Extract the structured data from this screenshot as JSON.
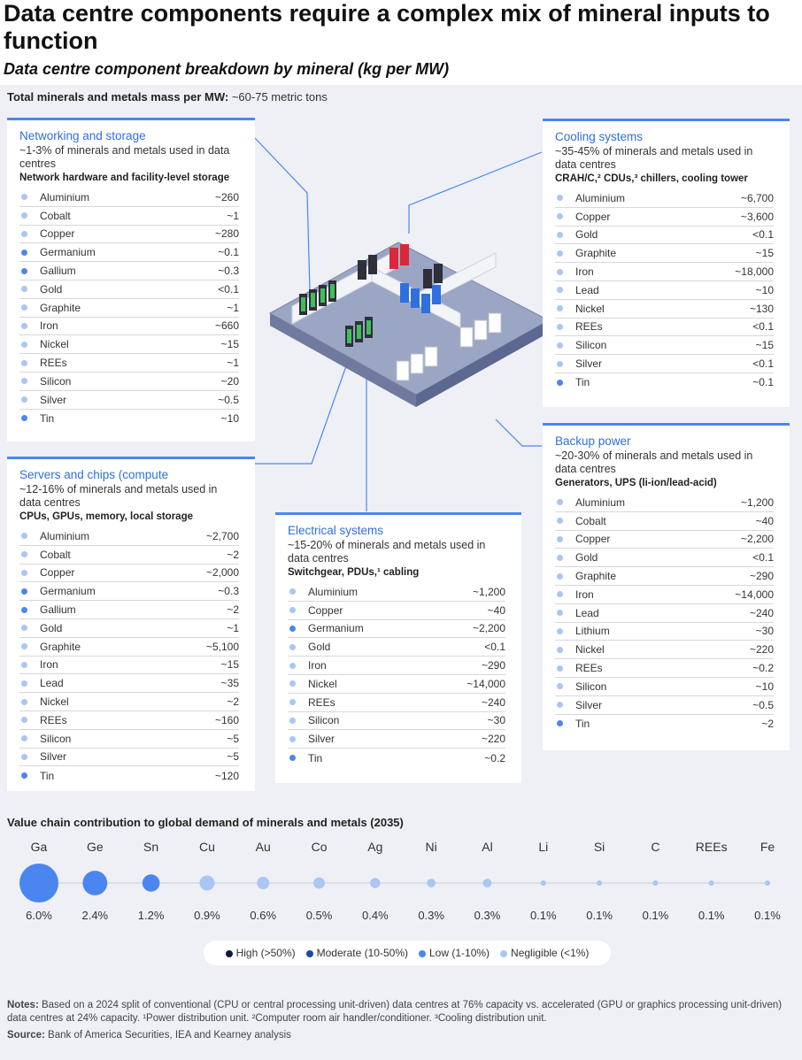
{
  "title": "Data centre components require a complex mix of mineral inputs to function",
  "subtitle": "Data centre component breakdown by mineral (kg per MW)",
  "total": {
    "label": "Total minerals and metals mass per MW:",
    "value": "~60-75 metric tons"
  },
  "colors": {
    "high": "#0c1a3c",
    "moderate": "#1f48a8",
    "low": "#4b86f0",
    "negligible": "#a9c6f5"
  },
  "components": [
    {
      "key": "networking",
      "title": "Networking and storage",
      "share": "~1-3% of minerals and metals used in data centres",
      "items": "Network hardware and facility-level storage",
      "minerals": [
        {
          "name": "Aluminium",
          "value": "~260",
          "level": "negligible"
        },
        {
          "name": "Cobalt",
          "value": "~1",
          "level": "negligible"
        },
        {
          "name": "Copper",
          "value": "~280",
          "level": "negligible"
        },
        {
          "name": "Germanium",
          "value": "~0.1",
          "level": "low"
        },
        {
          "name": "Gallium",
          "value": "~0.3",
          "level": "low"
        },
        {
          "name": "Gold",
          "value": "<0.1",
          "level": "negligible"
        },
        {
          "name": "Graphite",
          "value": "~1",
          "level": "negligible"
        },
        {
          "name": "Iron",
          "value": "~660",
          "level": "negligible"
        },
        {
          "name": "Nickel",
          "value": "~15",
          "level": "negligible"
        },
        {
          "name": "REEs",
          "value": "~1",
          "level": "negligible"
        },
        {
          "name": "Silicon",
          "value": "~20",
          "level": "negligible"
        },
        {
          "name": "Silver",
          "value": "~0.5",
          "level": "negligible"
        },
        {
          "name": "Tin",
          "value": "~10",
          "level": "low"
        }
      ]
    },
    {
      "key": "servers",
      "title": "Servers and chips (compute",
      "share": "~12-16% of minerals and metals used in data centres",
      "items": "CPUs, GPUs, memory, local storage",
      "minerals": [
        {
          "name": "Aluminium",
          "value": "~2,700",
          "level": "negligible"
        },
        {
          "name": "Cobalt",
          "value": "~2",
          "level": "negligible"
        },
        {
          "name": "Copper",
          "value": "~2,000",
          "level": "negligible"
        },
        {
          "name": "Germanium",
          "value": "~0.3",
          "level": "low"
        },
        {
          "name": "Gallium",
          "value": "~2",
          "level": "low"
        },
        {
          "name": "Gold",
          "value": "~1",
          "level": "negligible"
        },
        {
          "name": "Graphite",
          "value": "~5,100",
          "level": "negligible"
        },
        {
          "name": "Iron",
          "value": "~15",
          "level": "negligible"
        },
        {
          "name": "Lead",
          "value": "~35",
          "level": "negligible"
        },
        {
          "name": "Nickel",
          "value": "~2",
          "level": "negligible"
        },
        {
          "name": "REEs",
          "value": "~160",
          "level": "negligible"
        },
        {
          "name": "Silicon",
          "value": "~5",
          "level": "negligible"
        },
        {
          "name": "Silver",
          "value": "~5",
          "level": "negligible"
        },
        {
          "name": "Tin",
          "value": "~120",
          "level": "low"
        }
      ]
    },
    {
      "key": "electrical",
      "title": "Electrical systems",
      "share": "~15-20% of minerals and metals used in data centres",
      "items": "Switchgear, PDUs,¹ cabling",
      "minerals": [
        {
          "name": "Aluminium",
          "value": "~1,200",
          "level": "negligible"
        },
        {
          "name": "Copper",
          "value": "~40",
          "level": "negligible"
        },
        {
          "name": "Germanium",
          "value": "~2,200",
          "level": "low"
        },
        {
          "name": "Gold",
          "value": "<0.1",
          "level": "negligible"
        },
        {
          "name": "Iron",
          "value": "~290",
          "level": "negligible"
        },
        {
          "name": "Nickel",
          "value": "~14,000",
          "level": "negligible"
        },
        {
          "name": "REEs",
          "value": "~240",
          "level": "negligible"
        },
        {
          "name": "Silicon",
          "value": "~30",
          "level": "negligible"
        },
        {
          "name": "Silver",
          "value": "~220",
          "level": "negligible"
        },
        {
          "name": "Tin",
          "value": "~0.2",
          "level": "low"
        }
      ]
    },
    {
      "key": "cooling",
      "title": "Cooling systems",
      "share": "~35-45% of minerals and metals used in data centres",
      "items": "CRAH/C,² CDUs,³ chillers, cooling tower",
      "minerals": [
        {
          "name": "Aluminium",
          "value": "~6,700",
          "level": "negligible"
        },
        {
          "name": "Copper",
          "value": "~3,600",
          "level": "negligible"
        },
        {
          "name": "Gold",
          "value": "<0.1",
          "level": "negligible"
        },
        {
          "name": "Graphite",
          "value": "~15",
          "level": "negligible"
        },
        {
          "name": "Iron",
          "value": "~18,000",
          "level": "negligible"
        },
        {
          "name": "Lead",
          "value": "~10",
          "level": "negligible"
        },
        {
          "name": "Nickel",
          "value": "~130",
          "level": "negligible"
        },
        {
          "name": "REEs",
          "value": "<0.1",
          "level": "negligible"
        },
        {
          "name": "Silicon",
          "value": "~15",
          "level": "negligible"
        },
        {
          "name": "Silver",
          "value": "<0.1",
          "level": "negligible"
        },
        {
          "name": "Tin",
          "value": "~0.1",
          "level": "low"
        }
      ]
    },
    {
      "key": "backup",
      "title": "Backup power",
      "share": "~20-30% of minerals and metals used in data centres",
      "items": "Generators, UPS (li-ion/lead-acid)",
      "minerals": [
        {
          "name": "Aluminium",
          "value": "~1,200",
          "level": "negligible"
        },
        {
          "name": "Cobalt",
          "value": "~40",
          "level": "negligible"
        },
        {
          "name": "Copper",
          "value": "~2,200",
          "level": "negligible"
        },
        {
          "name": "Gold",
          "value": "<0.1",
          "level": "negligible"
        },
        {
          "name": "Graphite",
          "value": "~290",
          "level": "negligible"
        },
        {
          "name": "Iron",
          "value": "~14,000",
          "level": "negligible"
        },
        {
          "name": "Lead",
          "value": "~240",
          "level": "negligible"
        },
        {
          "name": "Lithium",
          "value": "~30",
          "level": "negligible"
        },
        {
          "name": "Nickel",
          "value": "~220",
          "level": "negligible"
        },
        {
          "name": "REEs",
          "value": "~0.2",
          "level": "negligible"
        },
        {
          "name": "Silicon",
          "value": "~10",
          "level": "negligible"
        },
        {
          "name": "Silver",
          "value": "~0.5",
          "level": "negligible"
        },
        {
          "name": "Tin",
          "value": "~2",
          "level": "low"
        }
      ]
    }
  ],
  "chart_data": {
    "type": "scatter",
    "title": "Value chain contribution to global demand of minerals and metals (2035)",
    "categories": [
      "Ga",
      "Ge",
      "Sn",
      "Cu",
      "Au",
      "Co",
      "Ag",
      "Ni",
      "Al",
      "Li",
      "Si",
      "C",
      "REEs",
      "Fe"
    ],
    "values": [
      6.0,
      2.4,
      1.2,
      0.9,
      0.6,
      0.5,
      0.4,
      0.3,
      0.3,
      0.1,
      0.1,
      0.1,
      0.1,
      0.1
    ],
    "labels": [
      "6.0%",
      "2.4%",
      "1.2%",
      "0.9%",
      "0.6%",
      "0.5%",
      "0.4%",
      "0.3%",
      "0.3%",
      "0.1%",
      "0.1%",
      "0.1%",
      "0.1%",
      "0.1%"
    ],
    "levels": [
      "low",
      "low",
      "low",
      "negligible",
      "negligible",
      "negligible",
      "negligible",
      "negligible",
      "negligible",
      "negligible",
      "negligible",
      "negligible",
      "negligible",
      "negligible"
    ],
    "unit": "%",
    "legend": [
      {
        "key": "high",
        "label": "High (>50%)"
      },
      {
        "key": "moderate",
        "label": "Moderate (10-50%)"
      },
      {
        "key": "low",
        "label": "Low (1-10%)"
      },
      {
        "key": "negligible",
        "label": "Negligible (<1%)"
      }
    ]
  },
  "notes": {
    "label": "Notes:",
    "text": "Based on a 2024 split of conventional (CPU or central processing unit-driven) data centres at 76% capacity vs. accelerated (GPU or graphics processing unit-driven) data centres at 24% capacity. ¹Power distribution unit. ²Computer room air handler/conditioner. ³Cooling distribution unit."
  },
  "source": {
    "label": "Source:",
    "text": "Bank of America Securities, IEA and Kearney analysis"
  }
}
